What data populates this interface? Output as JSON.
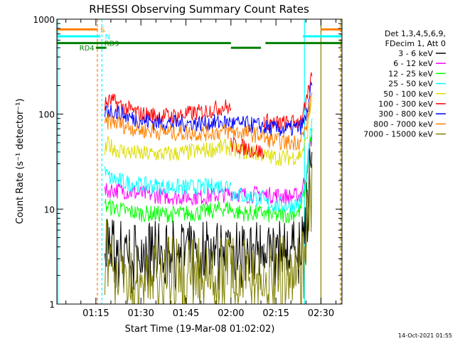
{
  "chart_data": {
    "type": "line",
    "title": "RHESSI Observing Summary Count Rates",
    "xlabel": "Start Time (19-Mar-08 01:02:02)",
    "ylabel": "Count Rate (s⁻¹ detector⁻¹)",
    "yscale": "log",
    "ylim": [
      1,
      1000
    ],
    "xlim_minutes": [
      62.0,
      157.0
    ],
    "y_ticks": [
      {
        "value": 1,
        "label": "1"
      },
      {
        "value": 10,
        "label": "10"
      },
      {
        "value": 100,
        "label": "100"
      },
      {
        "value": 1000,
        "label": "1000"
      }
    ],
    "x_ticks": [
      {
        "value": 75,
        "label": "01:15"
      },
      {
        "value": 90,
        "label": "01:30"
      },
      {
        "value": 105,
        "label": "01:45"
      },
      {
        "value": 120,
        "label": "02:00"
      },
      {
        "value": 135,
        "label": "02:15"
      },
      {
        "value": 150,
        "label": "02:30"
      }
    ],
    "legend_header": [
      "Det 1,3,4,5,6,9,",
      "FDecim 1, Att 0"
    ],
    "series": [
      {
        "name": "3 - 6 keV",
        "color": "#000000",
        "segments": [
          {
            "x": [
              78,
              80,
              84,
              90,
              100,
              110,
              120
            ],
            "y": [
              6.5,
              4.5,
              4.3,
              4.0,
              4.0,
              4.1,
              4.3
            ]
          },
          {
            "x": [
              120,
              125,
              130,
              131
            ],
            "y": [
              4.5,
              4.0,
              4.2,
              4.3
            ]
          },
          {
            "x": [
              131,
              135,
              140,
              143,
              145,
              146,
              147
            ],
            "y": [
              4.0,
              4.0,
              4.1,
              4.3,
              8,
              20,
              40
            ]
          }
        ]
      },
      {
        "name": "6 - 12 keV",
        "color": "#ff00ff",
        "segments": [
          {
            "x": [
              78,
              80,
              85,
              90,
              100,
              110,
              120
            ],
            "y": [
              15,
              16,
              15.5,
              14.5,
              13.5,
              13.5,
              14.5
            ]
          },
          {
            "x": [
              120,
              125,
              130,
              131
            ],
            "y": [
              15,
              14,
              14.5,
              15
            ]
          },
          {
            "x": [
              131,
              135,
              140,
              143,
              145,
              146,
              147
            ],
            "y": [
              14,
              14,
              13.5,
              14,
              22,
              40,
              60
            ]
          }
        ]
      },
      {
        "name": "12 - 25 keV",
        "color": "#00ff00",
        "segments": [
          {
            "x": [
              78,
              80,
              85,
              90,
              100,
              110,
              120
            ],
            "y": [
              11,
              10.5,
              9.5,
              9.0,
              8.8,
              9.2,
              10.5
            ]
          },
          {
            "x": [
              120,
              125,
              130,
              131
            ],
            "y": [
              9.5,
              9.0,
              9.0,
              9.5
            ]
          },
          {
            "x": [
              131,
              135,
              140,
              143,
              145,
              146,
              147
            ],
            "y": [
              8.8,
              8.5,
              8.8,
              9.5,
              18,
              40,
              70
            ]
          }
        ]
      },
      {
        "name": "25 - 50 keV",
        "color": "#00ffff",
        "segments": [
          {
            "x": [
              78,
              80,
              85,
              90,
              100,
              110,
              120
            ],
            "y": [
              24,
              21,
              19,
              18,
              17,
              17,
              18
            ]
          },
          {
            "x": [
              120,
              125,
              130,
              131
            ],
            "y": [
              15,
              13.5,
              13,
              13
            ]
          },
          {
            "x": [
              131,
              135,
              140,
              143,
              145,
              146,
              147
            ],
            "y": [
              11.5,
              11,
              11,
              11.5,
              18,
              40,
              90
            ]
          }
        ]
      },
      {
        "name": "50 - 100 keV",
        "color": "#dddd00",
        "segments": [
          {
            "x": [
              78,
              79,
              82,
              90,
              100,
              110,
              118,
              120
            ],
            "y": [
              40,
              48,
              42,
              38,
              38,
              41,
              45,
              45
            ]
          },
          {
            "x": [
              120,
              125,
              130,
              131
            ],
            "y": [
              42,
              40,
              38,
              38
            ]
          },
          {
            "x": [
              131,
              135,
              140,
              143,
              145,
              146,
              147
            ],
            "y": [
              36,
              35,
              35,
              37,
              50,
              90,
              150
            ]
          }
        ]
      },
      {
        "name": "100 - 300 keV",
        "color": "#ff0000",
        "segments": [
          {
            "x": [
              78,
              80,
              85,
              90,
              100,
              110,
              118,
              120
            ],
            "y": [
              125,
              140,
              115,
              100,
              95,
              105,
              120,
              115
            ]
          },
          {
            "x": [
              120,
              125,
              130,
              131
            ],
            "y": [
              48,
              44,
              40,
              38
            ]
          },
          {
            "x": [
              131,
              135,
              140,
              143,
              145,
              146,
              147
            ],
            "y": [
              85,
              80,
              80,
              85,
              120,
              180,
              250
            ]
          }
        ]
      },
      {
        "name": "300 - 800 keV",
        "color": "#0000ff",
        "segments": [
          {
            "x": [
              78,
              80,
              85,
              90,
              100,
              110,
              120
            ],
            "y": [
              108,
              110,
              95,
              85,
              80,
              80,
              82
            ]
          },
          {
            "x": [
              120,
              125,
              130,
              131
            ],
            "y": [
              80,
              78,
              75,
              75
            ]
          },
          {
            "x": [
              131,
              135,
              140,
              143,
              145,
              146,
              147
            ],
            "y": [
              72,
              70,
              70,
              72,
              90,
              140,
              200
            ]
          }
        ]
      },
      {
        "name": "800 - 7000 keV",
        "color": "#ff8000",
        "segments": [
          {
            "x": [
              78,
              80,
              85,
              90,
              100,
              110,
              120
            ],
            "y": [
              78,
              85,
              75,
              68,
              64,
              63,
              66
            ]
          },
          {
            "x": [
              120,
              125,
              130,
              131
            ],
            "y": [
              66,
              63,
              60,
              60
            ]
          },
          {
            "x": [
              131,
              135,
              140,
              143,
              145,
              146,
              147
            ],
            "y": [
              55,
              52,
              50,
              52,
              70,
              110,
              170
            ]
          }
        ]
      },
      {
        "name": "7000 - 15000 keV",
        "color": "#808000",
        "segments": [
          {
            "x": [
              78,
              80,
              85,
              90,
              100,
              110,
              120
            ],
            "y": [
              3.8,
              3.0,
              2.5,
              2.4,
              2.4,
              2.5,
              2.6
            ]
          },
          {
            "x": [
              120,
              125,
              130,
              131
            ],
            "y": [
              2.8,
              2.5,
              2.5,
              2.6
            ]
          },
          {
            "x": [
              131,
              135,
              140,
              143,
              145,
              146,
              147
            ],
            "y": [
              2.4,
              2.3,
              2.4,
              2.6,
              5,
              12,
              30
            ]
          }
        ]
      }
    ],
    "attenuator_bars": [
      {
        "label": "S",
        "color": "#ff8000",
        "y": 780,
        "label_x": 76.5,
        "ranges": [
          [
            62,
            75.5
          ],
          [
            150,
            157
          ]
        ]
      },
      {
        "label": "N",
        "color": "#00ffff",
        "y": 660,
        "label_x": 78.0,
        "ranges": [
          [
            62,
            76.5
          ],
          [
            144,
            157
          ]
        ]
      },
      {
        "label": "RD9",
        "color": "#008000",
        "y": 560,
        "label_x": 77.8,
        "ranges": [
          [
            62,
            120
          ],
          [
            131.5,
            157
          ]
        ]
      },
      {
        "label": "RD4",
        "color": "#008000",
        "y": 500,
        "label_x": 69.5,
        "ranges": [
          [
            75,
            78.5
          ],
          [
            120,
            130
          ]
        ]
      }
    ],
    "vertical_lines": [
      {
        "x": 62.3,
        "color": "#00ffff",
        "style": "solid"
      },
      {
        "x": 75.5,
        "color": "#ff8000",
        "style": "dashed"
      },
      {
        "x": 77.0,
        "color": "#00ffff",
        "style": "dashed"
      },
      {
        "x": 144.5,
        "color": "#00ffff",
        "style": "solid"
      },
      {
        "x": 150.0,
        "color": "#808000",
        "style": "solid"
      },
      {
        "x": 156.5,
        "color": "#ff8000",
        "style": "dashed"
      },
      {
        "x": 156.8,
        "color": "#00ffff",
        "style": "dashed"
      }
    ],
    "footer_timestamp": "14-Oct-2021 01:55"
  }
}
